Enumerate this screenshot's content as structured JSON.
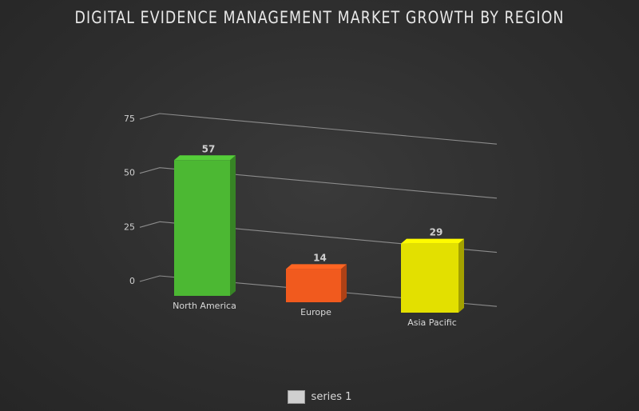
{
  "chart_data": {
    "type": "bar",
    "title": "DIGITAL EVIDENCE MANAGEMENT MARKET GROWTH BY REGION",
    "categories": [
      "North America",
      "Europe",
      "Asia Pacific"
    ],
    "series": [
      {
        "name": "series 1",
        "values": [
          57,
          14,
          29
        ]
      }
    ],
    "colors": [
      "#4cb833",
      "#f15a1e",
      "#e3e000"
    ],
    "yticks": [
      "75",
      "50",
      "25",
      "0"
    ],
    "ylim": [
      0,
      75
    ],
    "grid": true,
    "legend_position": "bottom"
  }
}
